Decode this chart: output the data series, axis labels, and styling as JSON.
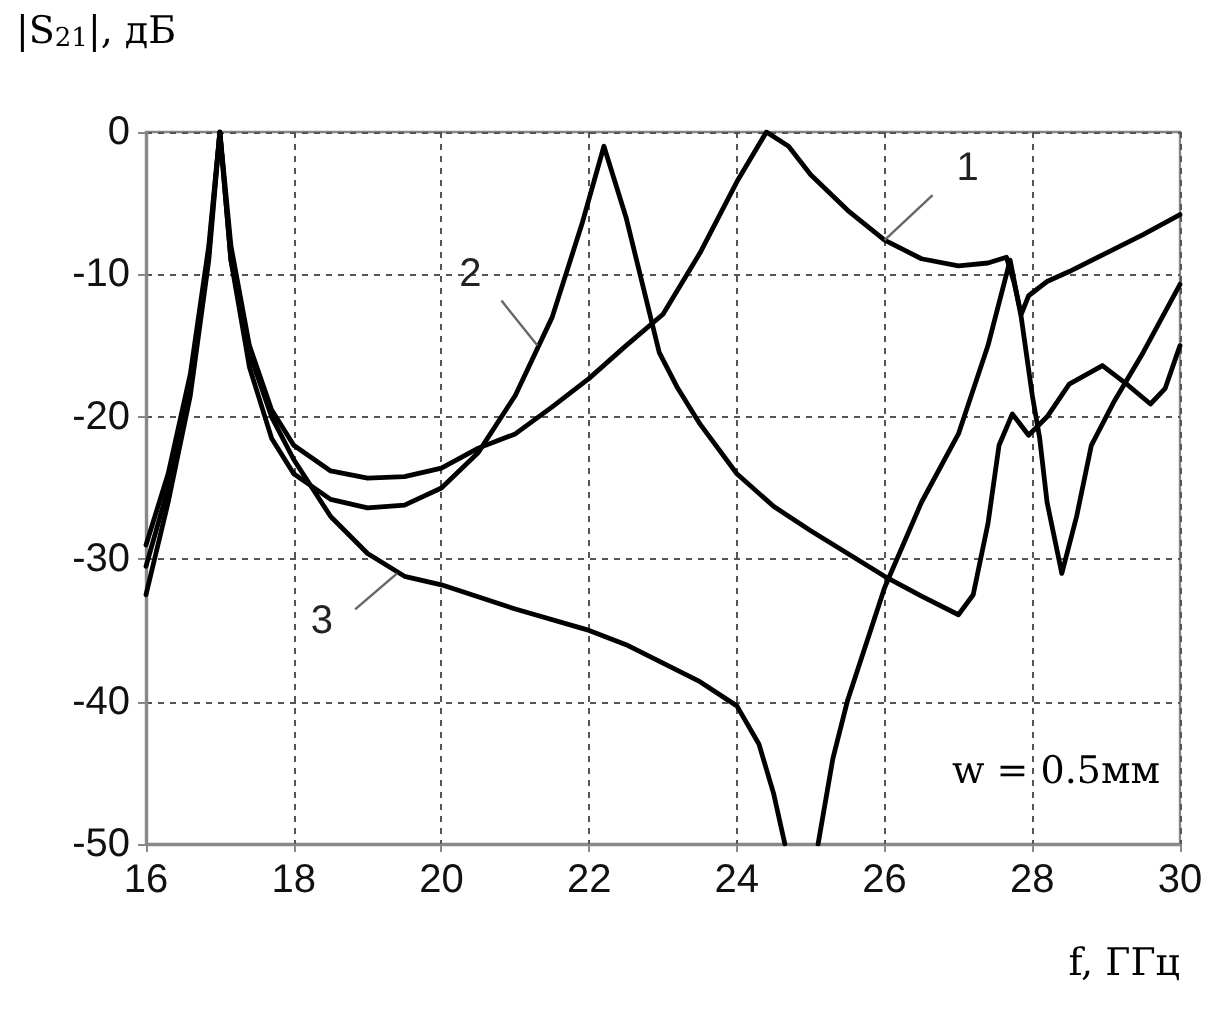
{
  "chart_data": {
    "type": "line",
    "ylabel": "|S$_{21}$|, дБ",
    "xlabel": "f, ГГц",
    "xlim": [
      16,
      30
    ],
    "xticks": [
      16,
      18,
      20,
      22,
      24,
      26,
      28,
      30
    ],
    "ylim": [
      -50,
      0
    ],
    "yticks": [
      -50,
      -40,
      -30,
      -20,
      -10,
      0
    ],
    "grid": true,
    "marker": "none",
    "line_style": "solid",
    "annotations": [
      {
        "text": "1",
        "x": 26,
        "y": -7.6
      },
      {
        "text": "2",
        "x": 21.3,
        "y": -15
      },
      {
        "text": "3",
        "x": 19.4,
        "y": -31
      },
      "w = 0.5мм"
    ],
    "series": [
      {
        "color": "#000000",
        "x": [
          16,
          16.3,
          16.6,
          16.85,
          17,
          17.15,
          17.4,
          17.7,
          18,
          18.5,
          19,
          19.5,
          20,
          20.5,
          21,
          21.5,
          22,
          22.5,
          23,
          23.5,
          24,
          24.4,
          24.7,
          25,
          25.5,
          26,
          26.5,
          27,
          27.4,
          27.65,
          27.75,
          27.85,
          27.95,
          28.2,
          28.5,
          29,
          29.5,
          30
        ],
        "values": [
          -29,
          -24,
          -17,
          -8,
          0,
          -8,
          -15,
          -19.5,
          -22,
          -23.8,
          -24.3,
          -24.2,
          -23.6,
          -22.2,
          -21.2,
          -19.3,
          -17.3,
          -15,
          -12.8,
          -8.5,
          -3.5,
          0,
          -1,
          -3,
          -5.5,
          -7.6,
          -8.9,
          -9.4,
          -9.2,
          -8.8,
          -10.5,
          -12.8,
          -11.5,
          -10.5,
          -9.8,
          -8.5,
          -7.2,
          -5.8
        ]
      },
      {
        "color": "#000000",
        "x": [
          16,
          16.3,
          16.6,
          16.85,
          17,
          17.15,
          17.4,
          17.7,
          18,
          18.5,
          19,
          19.5,
          20,
          20.5,
          21,
          21.5,
          21.9,
          22.2,
          22.5,
          22.95,
          23.2,
          23.5,
          24,
          24.5,
          25,
          25.5,
          26,
          26.5,
          27,
          27.2,
          27.4,
          27.55,
          27.73,
          27.95,
          28.2,
          28.5,
          28.95,
          29.3,
          29.6,
          29.8,
          30
        ],
        "values": [
          -30.5,
          -25,
          -18,
          -8.5,
          0,
          -9,
          -16.5,
          -21.5,
          -24,
          -25.8,
          -26.4,
          -26.2,
          -25,
          -22.5,
          -18.5,
          -13,
          -6.5,
          -1,
          -6,
          -15.5,
          -18,
          -20.5,
          -24,
          -26.3,
          -28,
          -29.6,
          -31.2,
          -32.6,
          -33.9,
          -32.5,
          -27.5,
          -22,
          -19.8,
          -21.3,
          -20,
          -17.7,
          -16.4,
          -17.8,
          -19.1,
          -18,
          -15
        ]
      },
      {
        "color": "#000000",
        "x": [
          16,
          16.3,
          16.6,
          16.85,
          17,
          17.15,
          17.4,
          17.7,
          18,
          18.5,
          19,
          19.5,
          20,
          21,
          22,
          22.5,
          23,
          23.5,
          24,
          24.3,
          24.5,
          24.65,
          24.9,
          25.1,
          25.3,
          25.5,
          26,
          26.5,
          27,
          27.4,
          27.7,
          27.85,
          28,
          28.1,
          28.2,
          28.4,
          28.6,
          28.8,
          29.1,
          29.5,
          30
        ],
        "values": [
          -32.5,
          -26,
          -18.5,
          -9,
          0,
          -9,
          -15.5,
          -20,
          -23,
          -27,
          -29.6,
          -31.2,
          -31.8,
          -33.5,
          -35,
          -36,
          -37.3,
          -38.6,
          -40.3,
          -43,
          -46.5,
          -50,
          null,
          -50,
          -44,
          -39.9,
          -32,
          -26,
          -21.2,
          -15,
          -9,
          -13,
          -18.5,
          -21.5,
          -26,
          -31,
          -27,
          -22,
          -19,
          -15.5,
          -10.7
        ]
      }
    ]
  }
}
